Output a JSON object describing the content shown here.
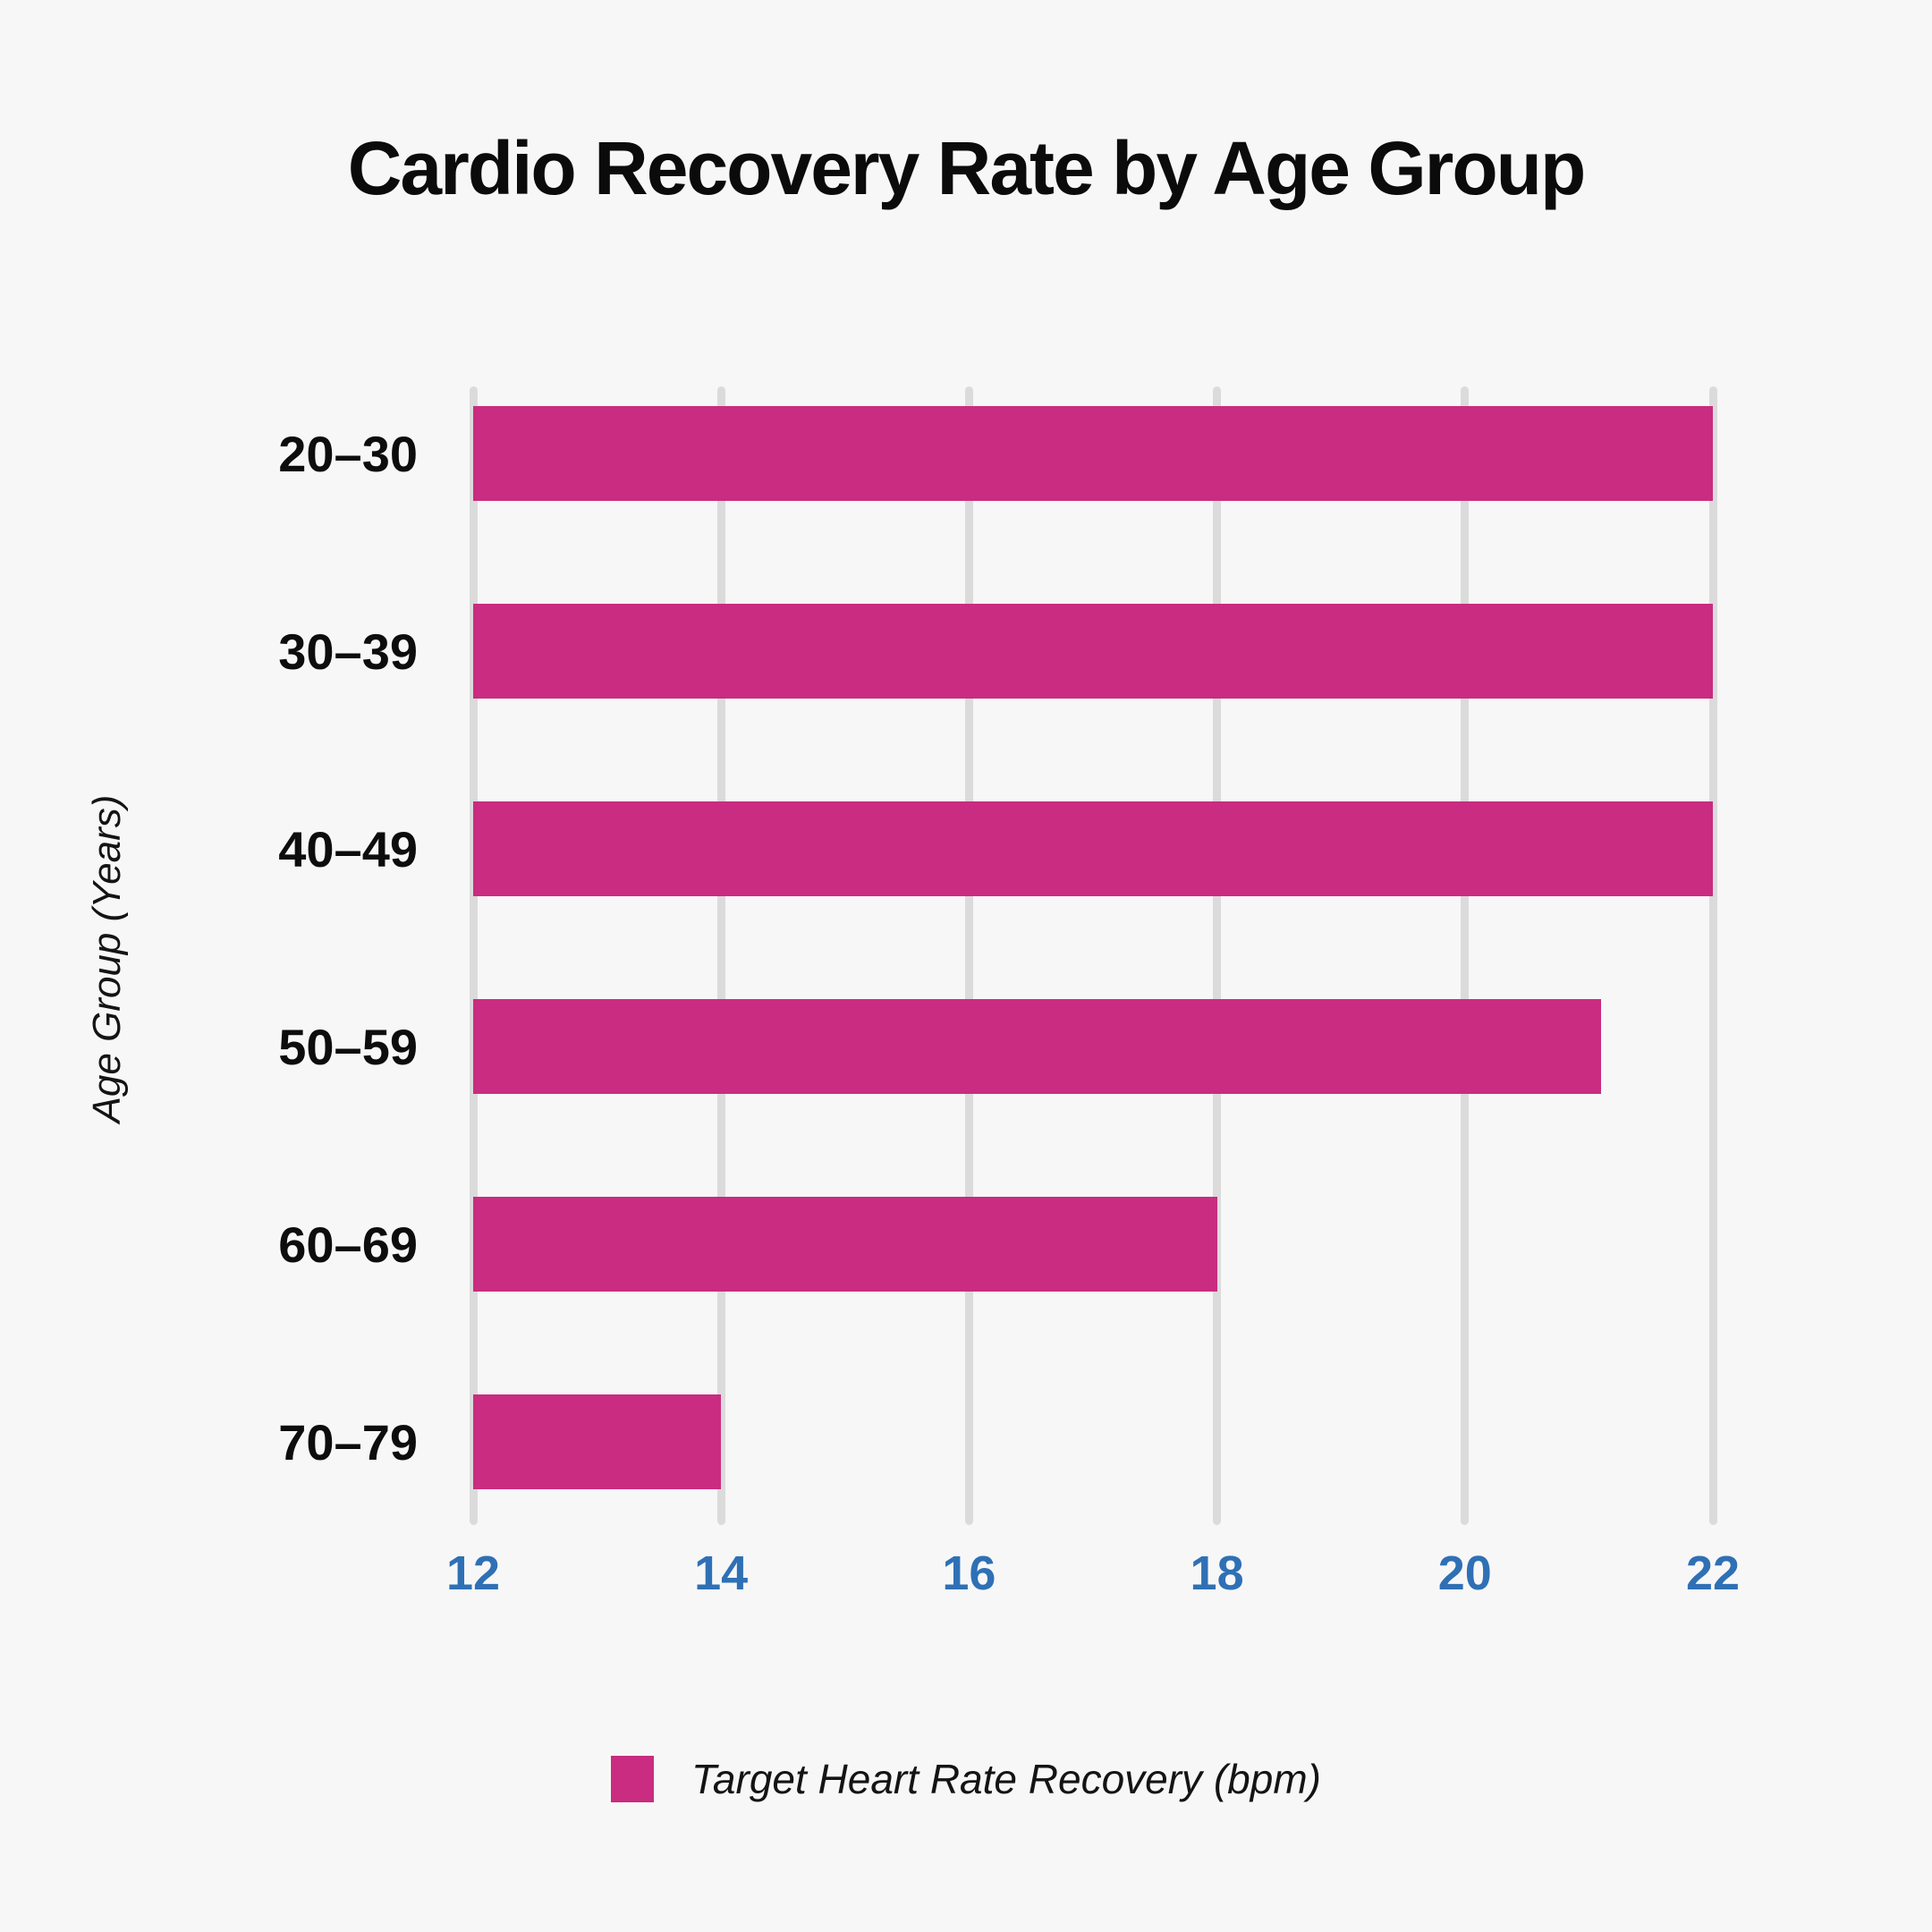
{
  "title": "Cardio Recovery Rate by Age Group",
  "colors": {
    "background": "#f7f7f7",
    "bar": "#c92c80",
    "gridline": "#dbdbdb",
    "tick_label": "#2f70b5",
    "text": "#0d0d0d"
  },
  "legend": {
    "label": "Target Heart Rate Recovery (bpm)",
    "position": "bottom",
    "swatch": "magenta-square"
  },
  "chart_data": {
    "type": "bar",
    "orientation": "horizontal",
    "title": "Cardio Recovery Rate by Age Group",
    "xlabel": "",
    "ylabel": "Age Group (Years)",
    "categories": [
      "20–30",
      "30–39",
      "40–49",
      "50–59",
      "60–69",
      "70–79"
    ],
    "series": [
      {
        "name": "Target Heart Rate Recovery (bpm)",
        "values": [
          22,
          22,
          22,
          21.1,
          18,
          14
        ]
      }
    ],
    "x_ticks": [
      12,
      14,
      16,
      18,
      20,
      22
    ],
    "xlim": [
      12,
      22
    ],
    "grid": "vertical-on",
    "legend_position": "bottom-center"
  }
}
